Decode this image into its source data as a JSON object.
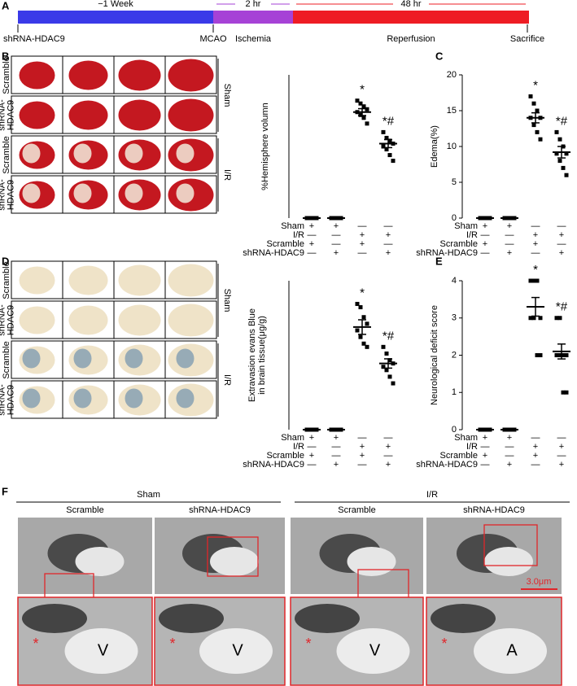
{
  "panel_labels": [
    "A",
    "B",
    "C",
    "D",
    "E",
    "F"
  ],
  "timeline": {
    "segments": [
      {
        "label": "−1 Week",
        "color": "#3a3ae8"
      },
      {
        "label": "2 hr",
        "color": "#a642d6"
      },
      {
        "label": "48 hr",
        "color": "#ee1c24"
      }
    ],
    "events": [
      "shRNA-HDAC9",
      "MCAO",
      "Sacrifice"
    ],
    "phases": [
      {
        "label": "Ischemia",
        "color": "#a642d6"
      },
      {
        "label": "Reperfusion",
        "color": "#ee1c24"
      }
    ]
  },
  "photos": [
    {
      "row_labels": [
        [
          "Scramble"
        ],
        [
          "shRNA-",
          "HDAC9"
        ],
        [
          "Scramble"
        ],
        [
          "shRNA-",
          "HDAC9"
        ]
      ],
      "group_labels": [
        "Sham",
        "I/R"
      ]
    },
    {
      "row_labels": [
        [
          "Scramble"
        ],
        [
          "shRNA-",
          "HDAC9"
        ],
        [
          "Scramble"
        ],
        [
          "shRNA-",
          "HDAC9"
        ]
      ],
      "group_labels": [
        "Sham",
        "I/R"
      ]
    }
  ],
  "chart_data": [
    {
      "type": "dot",
      "y_label": [
        "%Hemisphere volumn"
      ],
      "ylim": [
        0,
        50
      ],
      "values": [
        0,
        0,
        37,
        26
      ],
      "errors": [
        0,
        0,
        1.2,
        1.4
      ],
      "points": [
        [
          0,
          0,
          0,
          0,
          0,
          0,
          0,
          0
        ],
        [
          0,
          0,
          0,
          0,
          0,
          0,
          0,
          0
        ],
        [
          41,
          40,
          39,
          38,
          37,
          36,
          35,
          33
        ],
        [
          30,
          28,
          27,
          26,
          25,
          24,
          22,
          20
        ]
      ],
      "annotations": [
        null,
        null,
        "*",
        "*#"
      ],
      "conditions": [
        {
          "label": "Sham",
          "signs": [
            "+",
            "+",
            "—",
            "—"
          ]
        },
        {
          "label": "I/R",
          "signs": [
            "—",
            "—",
            "+",
            "+"
          ]
        },
        {
          "label": "Scramble",
          "signs": [
            "+",
            "—",
            "+",
            "—"
          ]
        },
        {
          "label": "shRNA-HDAC9",
          "signs": [
            "—",
            "+",
            "—",
            "+"
          ]
        }
      ]
    },
    {
      "type": "dot",
      "y_label": [
        "Edema(%)"
      ],
      "ylim": [
        0,
        20
      ],
      "yticks": [
        0,
        5,
        10,
        15,
        20
      ],
      "values": [
        0,
        0,
        14,
        9.2
      ],
      "errors": [
        0,
        0,
        0.7,
        0.8
      ],
      "points": [
        [
          0,
          0,
          0,
          0,
          0,
          0,
          0,
          0
        ],
        [
          0,
          0,
          0,
          0,
          0,
          0,
          0,
          0
        ],
        [
          17,
          16,
          15,
          14,
          14,
          13,
          12,
          11
        ],
        [
          12,
          11,
          10,
          9,
          9,
          8,
          7,
          6
        ]
      ],
      "annotations": [
        null,
        null,
        "*",
        "*#"
      ],
      "conditions": [
        {
          "label": "Sham",
          "signs": [
            "+",
            "+",
            "—",
            "—"
          ]
        },
        {
          "label": "I/R",
          "signs": [
            "—",
            "—",
            "+",
            "+"
          ]
        },
        {
          "label": "Scramble",
          "signs": [
            "+",
            "—",
            "+",
            "—"
          ]
        },
        {
          "label": "shRNA-HDAC9",
          "signs": [
            "—",
            "+",
            "—",
            "+"
          ]
        }
      ]
    },
    {
      "type": "dot",
      "y_label": [
        "Extravasion evans Blue",
        "in brain tissue(μg/g)"
      ],
      "ylim": [
        0,
        45
      ],
      "values": [
        0,
        0,
        31,
        20
      ],
      "errors": [
        0,
        0,
        2.2,
        1.4
      ],
      "points": [
        [
          0,
          0,
          0,
          0,
          0,
          0,
          0,
          0
        ],
        [
          0,
          0,
          0,
          0,
          0,
          0,
          0,
          0
        ],
        [
          38,
          37,
          34,
          32,
          30,
          28,
          26,
          25
        ],
        [
          25,
          23,
          21,
          20,
          19,
          18,
          16,
          14
        ]
      ],
      "annotations": [
        null,
        null,
        "*",
        "*#"
      ],
      "conditions": [
        {
          "label": "Sham",
          "signs": [
            "+",
            "+",
            "—",
            "—"
          ]
        },
        {
          "label": "I/R",
          "signs": [
            "—",
            "—",
            "+",
            "+"
          ]
        },
        {
          "label": "Scramble",
          "signs": [
            "+",
            "—",
            "+",
            "—"
          ]
        },
        {
          "label": "shRNA-HDAC9",
          "signs": [
            "—",
            "+",
            "—",
            "+"
          ]
        }
      ]
    },
    {
      "type": "dot",
      "y_label": [
        "Neurological deficit score"
      ],
      "ylim": [
        0,
        4
      ],
      "yticks": [
        0,
        1,
        2,
        3,
        4
      ],
      "values": [
        0,
        0,
        3.3,
        2.1
      ],
      "errors": [
        0,
        0,
        0.25,
        0.2
      ],
      "points": [
        [
          0,
          0,
          0,
          0,
          0,
          0,
          0,
          0
        ],
        [
          0,
          0,
          0,
          0,
          0,
          0,
          0,
          0
        ],
        [
          4,
          4,
          4,
          3,
          3,
          3,
          2,
          2
        ],
        [
          3,
          3,
          2,
          2,
          2,
          2,
          1,
          1
        ]
      ],
      "annotations": [
        null,
        null,
        "*",
        "*#"
      ],
      "conditions": [
        {
          "label": "Sham",
          "signs": [
            "+",
            "+",
            "—",
            "—"
          ]
        },
        {
          "label": "I/R",
          "signs": [
            "—",
            "—",
            "+",
            "+"
          ]
        },
        {
          "label": "Scramble",
          "signs": [
            "+",
            "—",
            "+",
            "—"
          ]
        },
        {
          "label": "shRNA-HDAC9",
          "signs": [
            "—",
            "+",
            "—",
            "+"
          ]
        }
      ]
    }
  ],
  "em": {
    "groups": [
      "Sham",
      "I/R"
    ],
    "columns": [
      "Scramble",
      "shRNA-HDAC9",
      "Scramble",
      "shRNA-HDAC9"
    ],
    "scale_bar": "3.0μm",
    "zoom_labels": [
      "V",
      "V",
      "V",
      "A"
    ],
    "marker": "*"
  }
}
